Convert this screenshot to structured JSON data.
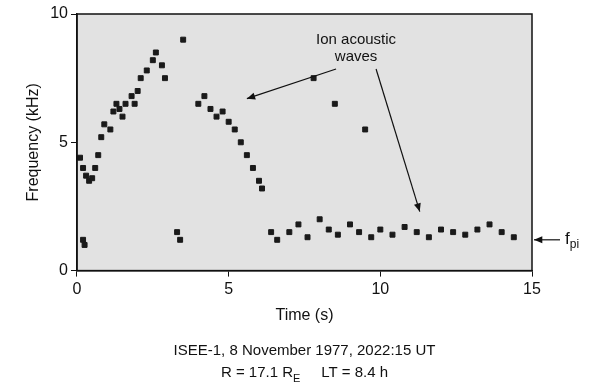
{
  "chart_data": {
    "type": "scatter",
    "x_label": "Time (s)",
    "y_label": "Frequency (kHz)",
    "xlim": [
      0,
      15
    ],
    "xticks": [
      0,
      5,
      10,
      15
    ],
    "ylim": [
      0,
      10
    ],
    "yticks": [
      0,
      5,
      10
    ],
    "grid": false,
    "color": "#1a1a1a",
    "marker": "square",
    "x": [
      0.1,
      0.2,
      0.3,
      0.4,
      0.5,
      0.6,
      0.7,
      0.8,
      0.9,
      0.2,
      0.25,
      1.1,
      1.2,
      1.3,
      1.4,
      1.5,
      1.6,
      1.8,
      1.9,
      2.0,
      2.1,
      2.3,
      2.5,
      2.6,
      2.8,
      2.9,
      3.3,
      3.4,
      4.0,
      4.2,
      4.4,
      4.6,
      4.8,
      5.0,
      5.2,
      5.4,
      5.6,
      5.8,
      6.0,
      6.1,
      6.4,
      6.6,
      7.0,
      7.3,
      7.6,
      8.0,
      8.3,
      8.6,
      9.0,
      9.3,
      9.7,
      10.0,
      10.4,
      10.8,
      11.2,
      11.6,
      12.0,
      12.4,
      12.8,
      13.2,
      13.6,
      14.0,
      14.4,
      7.8,
      8.5,
      9.5,
      3.5
    ],
    "values": [
      4.4,
      4.0,
      3.7,
      3.5,
      3.6,
      4.0,
      4.5,
      5.2,
      5.7,
      1.2,
      1.0,
      5.5,
      6.2,
      6.5,
      6.3,
      6.0,
      6.5,
      6.8,
      6.5,
      7.0,
      7.5,
      7.8,
      8.2,
      8.5,
      8.0,
      7.5,
      1.5,
      1.2,
      6.5,
      6.8,
      6.3,
      6.0,
      6.2,
      5.8,
      5.5,
      5.0,
      4.5,
      4.0,
      3.5,
      3.2,
      1.5,
      1.2,
      1.5,
      1.8,
      1.3,
      2.0,
      1.6,
      1.4,
      1.8,
      1.5,
      1.3,
      1.6,
      1.4,
      1.7,
      1.5,
      1.3,
      1.6,
      1.5,
      1.4,
      1.6,
      1.8,
      1.5,
      1.3,
      7.5,
      6.5,
      5.5,
      9.0
    ],
    "annotations": [
      {
        "text": "Ion acoustic waves",
        "x": 9.2,
        "y": 9.3,
        "arrows": [
          {
            "x": 5.6,
            "y": 6.7
          },
          {
            "x": 11.3,
            "y": 2.3
          }
        ]
      },
      {
        "text": "f",
        "subscript": "pi",
        "y": 1.2
      }
    ],
    "caption": [
      [
        {
          "text": "ISEE-1, 8 November 1977, 2022:15 UT"
        }
      ],
      [
        {
          "text": "R = 17.1 "
        },
        {
          "text": "R",
          "subscript": "E"
        },
        {
          "text": "     LT = 8.4 h"
        }
      ]
    ]
  }
}
